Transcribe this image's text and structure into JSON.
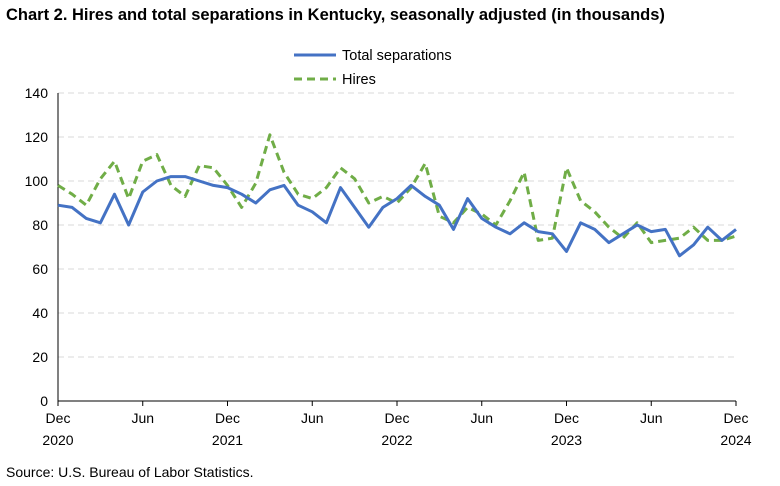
{
  "title": "Chart 2. Hires and total separations in Kentucky, seasonally adjusted (in thousands)",
  "source": "Source: U.S. Bureau of Labor Statistics.",
  "colors": {
    "total_separations": "#4472c4",
    "hires": "#70ad47",
    "grid": "#d9d9d9",
    "axis": "#000000"
  },
  "chart_data": {
    "type": "line",
    "title": "Chart 2. Hires and total separations in Kentucky, seasonally adjusted (in thousands)",
    "xlabel": "",
    "ylabel": "",
    "ylim": [
      0,
      140
    ],
    "yticks": [
      "0",
      "20",
      "40",
      "60",
      "80",
      "100",
      "120",
      "140"
    ],
    "grid": "horizontal dashed",
    "legend_position": "top-center",
    "x": [
      "Dec 2020",
      "Jan 2021",
      "Feb 2021",
      "Mar 2021",
      "Apr 2021",
      "May 2021",
      "Jun 2021",
      "Jul 2021",
      "Aug 2021",
      "Sep 2021",
      "Oct 2021",
      "Nov 2021",
      "Dec 2021",
      "Jan 2022",
      "Feb 2022",
      "Mar 2022",
      "Apr 2022",
      "May 2022",
      "Jun 2022",
      "Jul 2022",
      "Aug 2022",
      "Sep 2022",
      "Oct 2022",
      "Nov 2022",
      "Dec 2022",
      "Jan 2023",
      "Feb 2023",
      "Mar 2023",
      "Apr 2023",
      "May 2023",
      "Jun 2023",
      "Jul 2023",
      "Aug 2023",
      "Sep 2023",
      "Oct 2023",
      "Nov 2023",
      "Dec 2023",
      "Jan 2024",
      "Feb 2024",
      "Mar 2024",
      "Apr 2024",
      "May 2024",
      "Jun 2024",
      "Jul 2024",
      "Aug 2024",
      "Sep 2024",
      "Oct 2024",
      "Nov 2024",
      "Dec 2024"
    ],
    "x_tick_labels": [
      {
        "month": "Dec",
        "year": "2020"
      },
      {
        "month": "Jun",
        "year": ""
      },
      {
        "month": "Dec",
        "year": "2021"
      },
      {
        "month": "Jun",
        "year": ""
      },
      {
        "month": "Dec",
        "year": "2022"
      },
      {
        "month": "Jun",
        "year": ""
      },
      {
        "month": "Dec",
        "year": "2023"
      },
      {
        "month": "Jun",
        "year": ""
      },
      {
        "month": "Dec",
        "year": "2024"
      }
    ],
    "series": [
      {
        "name": "Total separations",
        "style": "solid",
        "values": [
          89,
          88,
          83,
          81,
          94,
          80,
          95,
          100,
          102,
          102,
          100,
          98,
          97,
          94,
          90,
          96,
          98,
          89,
          86,
          81,
          97,
          88,
          79,
          88,
          92,
          98,
          93,
          89,
          78,
          92,
          83,
          79,
          76,
          81,
          77,
          76,
          68,
          81,
          78,
          72,
          76,
          80,
          77,
          78,
          66,
          71,
          79,
          73,
          78
        ]
      },
      {
        "name": "Hires",
        "style": "dashed",
        "values": [
          98,
          94,
          89,
          101,
          109,
          92,
          109,
          112,
          98,
          93,
          107,
          106,
          98,
          88,
          99,
          121,
          104,
          94,
          92,
          97,
          106,
          101,
          90,
          93,
          90,
          97,
          108,
          84,
          81,
          88,
          85,
          80,
          91,
          104,
          73,
          74,
          106,
          91,
          86,
          79,
          74,
          81,
          72,
          73,
          74,
          79,
          73,
          73,
          75
        ]
      }
    ]
  }
}
